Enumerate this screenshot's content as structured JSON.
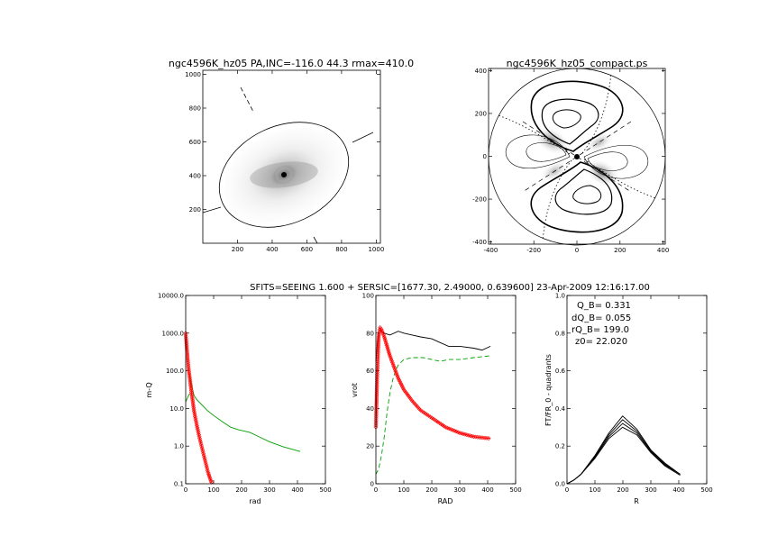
{
  "figure": {
    "suptitle": "SFITS=SEEING 1.600 + SERSIC=[1677.30, 2.49000, 0.639600]  23-Apr-2009 12:16:17.00"
  },
  "chart_data": [
    {
      "id": "image",
      "type": "heatmap",
      "title": "ngc4596K_hz05 PA,INC=-116.0 44.3 rmax=410.0",
      "xlim": [
        0,
        1024
      ],
      "ylim": [
        0,
        1024
      ],
      "xticks": [
        200,
        400,
        600,
        800,
        1000
      ],
      "yticks": [
        200,
        400,
        600,
        800,
        1000
      ],
      "center": [
        480,
        410
      ],
      "ellipse": {
        "a": 410,
        "b": 293,
        "pa_deg": 25
      },
      "colors": {
        "image": "#000000"
      }
    },
    {
      "id": "compact",
      "type": "heatmap",
      "title": "ngc4596K_hz05_compact.ps",
      "xlim": [
        -410,
        410
      ],
      "ylim": [
        -410,
        410
      ],
      "xticks": [
        -400,
        -200,
        0,
        200,
        400
      ],
      "yticks": [
        -400,
        -200,
        0,
        200,
        400
      ],
      "rmax": 410
    },
    {
      "id": "mass",
      "type": "line",
      "xlabel": "rad",
      "ylabel": "m-Q",
      "xlim": [
        0,
        500
      ],
      "yscale": "log",
      "ylim": [
        0.1,
        10000
      ],
      "xticks": [
        0,
        100,
        200,
        300,
        400,
        500
      ],
      "yticks": [
        0.1,
        1.0,
        10.0,
        100.0,
        1000.0,
        10000.0
      ],
      "ytick_labels": [
        "0.1",
        "1.0",
        "10.0",
        "100.0",
        "1000.0",
        "10000.0"
      ],
      "series": [
        {
          "name": "disk",
          "color": "#00a000",
          "x": [
            0,
            5,
            10,
            20,
            30,
            40,
            60,
            80,
            100,
            130,
            160,
            190,
            210,
            230,
            260,
            300,
            350,
            410
          ],
          "y": [
            900,
            300,
            120,
            45,
            22,
            17,
            12,
            8.5,
            6.5,
            4.5,
            3.2,
            2.7,
            2.5,
            2.3,
            1.8,
            1.3,
            0.95,
            0.72
          ]
        },
        {
          "name": "disk-inner",
          "color": "#00a000",
          "x": [
            0,
            5,
            10,
            15
          ],
          "y": [
            15,
            18,
            22,
            25
          ]
        },
        {
          "name": "bulge",
          "color": "#ff0000",
          "marker": "diamond",
          "x": [
            0,
            5,
            10,
            20,
            30,
            40,
            50,
            60,
            70,
            80,
            90,
            95
          ],
          "y": [
            1000,
            330,
            120,
            30,
            8.5,
            3.5,
            1.6,
            0.8,
            0.4,
            0.2,
            0.12,
            0.1
          ]
        }
      ]
    },
    {
      "id": "vrot",
      "type": "line",
      "xlabel": "RAD",
      "ylabel": "vrot",
      "xlim": [
        0,
        500
      ],
      "ylim": [
        0,
        100
      ],
      "xticks": [
        0,
        100,
        200,
        300,
        400,
        500
      ],
      "yticks": [
        0,
        20,
        40,
        60,
        80,
        100
      ],
      "series": [
        {
          "name": "total",
          "color": "#000000",
          "x": [
            0,
            5,
            10,
            15,
            20,
            30,
            50,
            80,
            100,
            130,
            160,
            200,
            230,
            260,
            300,
            350,
            380,
            410
          ],
          "y": [
            65,
            74,
            80,
            82,
            81,
            80,
            79,
            81,
            80,
            79,
            78,
            77,
            75,
            73,
            73,
            72,
            71,
            73
          ]
        },
        {
          "name": "disk",
          "color": "#00a000",
          "dash": true,
          "x": [
            0,
            10,
            20,
            30,
            40,
            50,
            60,
            70,
            80,
            100,
            130,
            170,
            200,
            230,
            260,
            300,
            350,
            410
          ],
          "y": [
            5,
            8,
            15,
            25,
            38,
            48,
            55,
            60,
            63,
            66,
            67,
            67,
            66,
            65,
            66,
            66,
            67,
            68
          ]
        },
        {
          "name": "bulge",
          "color": "#ff0000",
          "marker": "diamond",
          "x": [
            0,
            5,
            10,
            15,
            20,
            30,
            50,
            80,
            100,
            130,
            160,
            200,
            250,
            300,
            350,
            410
          ],
          "y": [
            30,
            60,
            78,
            83,
            82,
            78,
            68,
            56,
            50,
            44,
            39,
            35,
            30,
            27,
            25,
            24
          ]
        }
      ]
    },
    {
      "id": "qt",
      "type": "line",
      "xlabel": "R",
      "ylabel": "FT/FR_0 - quadrants",
      "xlim": [
        0,
        500
      ],
      "ylim": [
        0,
        1.0
      ],
      "xticks": [
        0,
        100,
        200,
        300,
        400,
        500
      ],
      "yticks": [
        0.0,
        0.2,
        0.4,
        0.6,
        0.8,
        1.0
      ],
      "annotations": [
        "Q_B=  0.331",
        "dQ_B=  0.055",
        "rQ_B=  199.0",
        "z0= 22.020"
      ],
      "series": [
        {
          "name": "q1",
          "color": "#000000",
          "x": [
            0,
            25,
            50,
            100,
            150,
            199,
            250,
            300,
            350,
            405
          ],
          "y": [
            0.0,
            0.02,
            0.05,
            0.15,
            0.27,
            0.36,
            0.29,
            0.18,
            0.11,
            0.05
          ]
        },
        {
          "name": "q2",
          "color": "#000000",
          "x": [
            0,
            25,
            50,
            100,
            150,
            199,
            250,
            300,
            350,
            405
          ],
          "y": [
            0.0,
            0.02,
            0.05,
            0.145,
            0.26,
            0.34,
            0.28,
            0.175,
            0.105,
            0.05
          ]
        },
        {
          "name": "q3",
          "color": "#000000",
          "x": [
            0,
            25,
            50,
            100,
            150,
            199,
            250,
            300,
            350,
            405
          ],
          "y": [
            0.0,
            0.02,
            0.05,
            0.14,
            0.25,
            0.32,
            0.27,
            0.17,
            0.1,
            0.05
          ]
        },
        {
          "name": "q4",
          "color": "#000000",
          "x": [
            0,
            25,
            50,
            100,
            150,
            199,
            250,
            300,
            350,
            405
          ],
          "y": [
            0.0,
            0.02,
            0.05,
            0.135,
            0.24,
            0.3,
            0.26,
            0.165,
            0.095,
            0.045
          ]
        }
      ]
    }
  ]
}
